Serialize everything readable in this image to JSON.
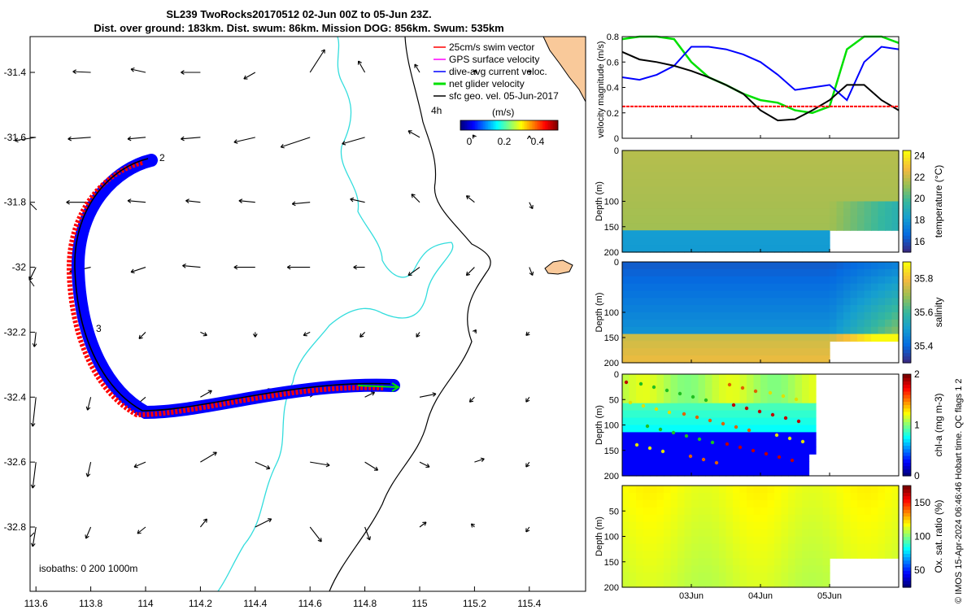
{
  "title": {
    "line1": "SL239 TwoRocks20170512 02-Jun 00Z to 05-Jun 23Z.",
    "line2": "Dist. over ground: 183km. Dist. swum: 86km. Mission DOG: 856km. Swum: 535km"
  },
  "map": {
    "x_ticks": [
      "113.6",
      "113.8",
      "114",
      "114.2",
      "114.4",
      "114.6",
      "114.8",
      "115",
      "115.2",
      "115.4"
    ],
    "y_ticks": [
      "-31.4",
      "-31.6",
      "-31.8",
      "-32",
      "-32.2",
      "-32.4",
      "-32.6",
      "-32.8"
    ],
    "legend": [
      "25cm/s swim vector",
      "GPS surface velocity",
      "dive-avg current veloc.",
      "net glider velocity",
      "sfc geo. vel. 05-Jun-2017"
    ],
    "legend_colors": [
      "#ff0000",
      "#ff00ff",
      "#0000ff",
      "#00e000",
      "#000000"
    ],
    "time_label": "4h",
    "colorbar_unit": "(m/s)",
    "colorbar_ticks": [
      "0",
      "0.2",
      "0.4"
    ],
    "isobath_label": "isobaths: 0   200  1000m",
    "track_markers": [
      "2",
      "3"
    ],
    "colors": {
      "land": "#f9c99a",
      "coast": "#000000",
      "isobath200": "#33dddd",
      "track_swim": "#ff0000",
      "track_current": "#0000ff",
      "track_net": "#00e000"
    }
  },
  "chart_data": [
    {
      "type": "line",
      "title": "velocity magnitude",
      "ylabel": "velocity magnitude (m/s)",
      "xlabel": "",
      "ylim": [
        0,
        0.8
      ],
      "y_ticks": [
        "0",
        "0.2",
        "0.4",
        "0.6",
        "0.8"
      ],
      "x_ticks": [
        "03Jun",
        "04Jun",
        "05Jun"
      ],
      "x": [
        0,
        0.25,
        0.5,
        0.75,
        1.0,
        1.25,
        1.5,
        1.75,
        2.0,
        2.25,
        2.5,
        2.75,
        3.0,
        3.25,
        3.5,
        3.75,
        4.0
      ],
      "series": [
        {
          "name": "net glider velocity",
          "color": "#00e000",
          "values": [
            0.78,
            0.8,
            0.8,
            0.78,
            0.6,
            0.48,
            0.42,
            0.35,
            0.3,
            0.28,
            0.22,
            0.2,
            0.25,
            0.7,
            0.8,
            0.8,
            0.75
          ]
        },
        {
          "name": "dive-avg current veloc.",
          "color": "#0000ff",
          "values": [
            0.48,
            0.46,
            0.5,
            0.57,
            0.72,
            0.72,
            0.7,
            0.66,
            0.6,
            0.5,
            0.38,
            0.4,
            0.42,
            0.3,
            0.6,
            0.72,
            0.7
          ]
        },
        {
          "name": "sfc geo. vel.",
          "color": "#000000",
          "values": [
            0.68,
            0.62,
            0.6,
            0.57,
            0.53,
            0.48,
            0.42,
            0.35,
            0.22,
            0.14,
            0.15,
            0.22,
            0.3,
            0.42,
            0.42,
            0.3,
            0.22
          ]
        },
        {
          "name": "25cm/s swim vector",
          "color": "#ff0000",
          "values": [
            0.25,
            0.25,
            0.25,
            0.25,
            0.25,
            0.25,
            0.25,
            0.25,
            0.25,
            0.25,
            0.25,
            0.25,
            0.25,
            0.25,
            0.25,
            0.25,
            0.25
          ]
        }
      ]
    },
    {
      "type": "heatmap",
      "title": "temperature",
      "ylabel": "Depth (m)",
      "colorbar_label": "temperature (°C)",
      "colorbar_ticks": [
        "16",
        "18",
        "20",
        "22",
        "24"
      ],
      "clim": [
        15,
        24.5
      ],
      "y_ticks": [
        "0",
        "100",
        "150",
        "200"
      ],
      "ylim": [
        0,
        200
      ],
      "x_ticks": [
        "03Jun",
        "04Jun",
        "05Jun"
      ],
      "profile_summary": {
        "surface_value": 21.8,
        "bottom_value": 18.5
      }
    },
    {
      "type": "heatmap",
      "title": "salinity",
      "ylabel": "Depth (m)",
      "colorbar_label": "salinity",
      "colorbar_ticks": [
        "35.4",
        "35.6",
        "35.8"
      ],
      "clim": [
        35.3,
        35.9
      ],
      "y_ticks": [
        "0",
        "100",
        "150",
        "200"
      ],
      "ylim": [
        0,
        200
      ],
      "x_ticks": [
        "03Jun",
        "04Jun",
        "05Jun"
      ],
      "profile_summary": {
        "surface_value": 35.35,
        "bottom_value": 35.85
      }
    },
    {
      "type": "heatmap",
      "title": "chl-a",
      "ylabel": "Depth (m)",
      "colorbar_label": "chl-a (mg m-3)",
      "colorbar_ticks": [
        "0",
        "1",
        "2"
      ],
      "clim": [
        0,
        2
      ],
      "y_ticks": [
        "0",
        "50",
        "100",
        "150",
        "200"
      ],
      "ylim": [
        0,
        200
      ],
      "x_ticks": [
        "03Jun",
        "04Jun",
        "05Jun"
      ],
      "profile_summary": {
        "surface_value": 1.1,
        "bottom_value": 0.1
      }
    },
    {
      "type": "heatmap",
      "title": "oxygen saturation ratio",
      "ylabel": "Depth (m)",
      "colorbar_label": "Ox. sat. ratio (%)",
      "colorbar_ticks": [
        "50",
        "100",
        "150"
      ],
      "clim": [
        25,
        175
      ],
      "y_ticks": [
        "50",
        "100",
        "150",
        "200"
      ],
      "ylim": [
        0,
        200
      ],
      "x_ticks": [
        "03Jun",
        "04Jun",
        "05Jun"
      ],
      "profile_summary": {
        "surface_value": 130,
        "bottom_value": 110
      }
    }
  ],
  "footer": {
    "credit": "© IMOS 15-Apr-2024 06:46:46 Hobart time. QC flags 1  2"
  }
}
